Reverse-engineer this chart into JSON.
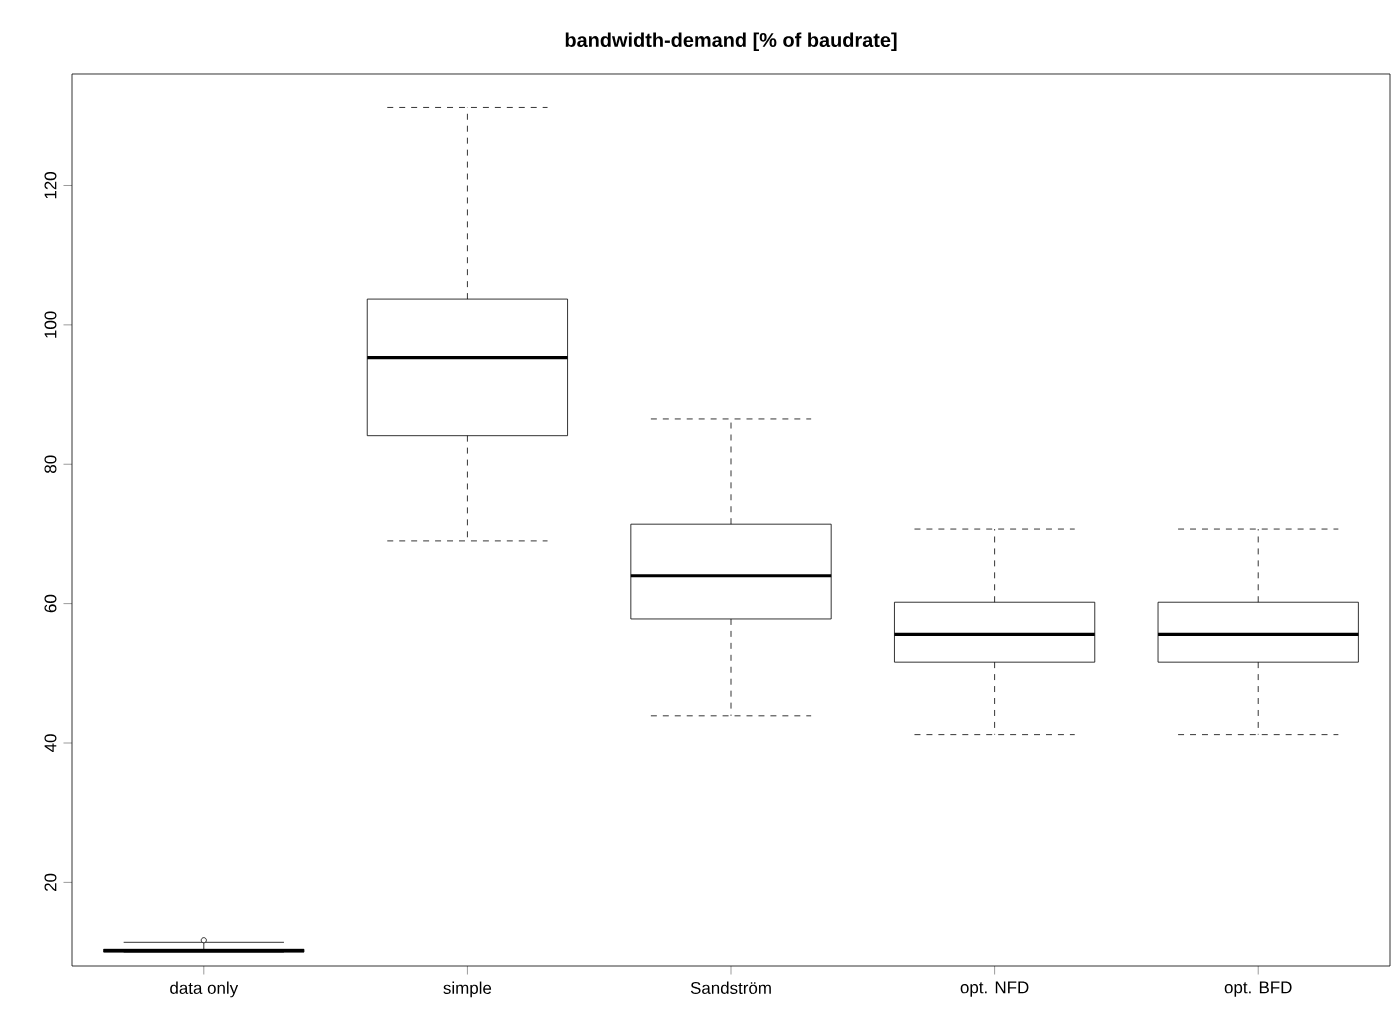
{
  "chart_data": {
    "type": "box",
    "title": "bandwidth-demand [% of baudrate]",
    "categories": [
      "data only",
      "simple",
      "Sandström",
      "opt. NFD",
      "opt. BFD"
    ],
    "boxes": [
      {
        "low": 10.0,
        "q1": 10.0,
        "median": 10.2,
        "q3": 10.4,
        "high": 11.4,
        "outliers": [
          11.7
        ]
      },
      {
        "low": 69.0,
        "q1": 84.1,
        "median": 95.3,
        "q3": 103.7,
        "high": 131.2
      },
      {
        "low": 43.9,
        "q1": 57.8,
        "median": 64.0,
        "q3": 71.4,
        "high": 86.5
      },
      {
        "low": 41.2,
        "q1": 51.6,
        "median": 55.6,
        "q3": 60.2,
        "high": 70.7
      },
      {
        "low": 41.2,
        "q1": 51.6,
        "median": 55.6,
        "q3": 60.2,
        "high": 70.7
      }
    ],
    "ylim": [
      8,
      136
    ],
    "yticks": [
      20,
      40,
      60,
      80,
      100,
      120
    ],
    "grid": false
  }
}
